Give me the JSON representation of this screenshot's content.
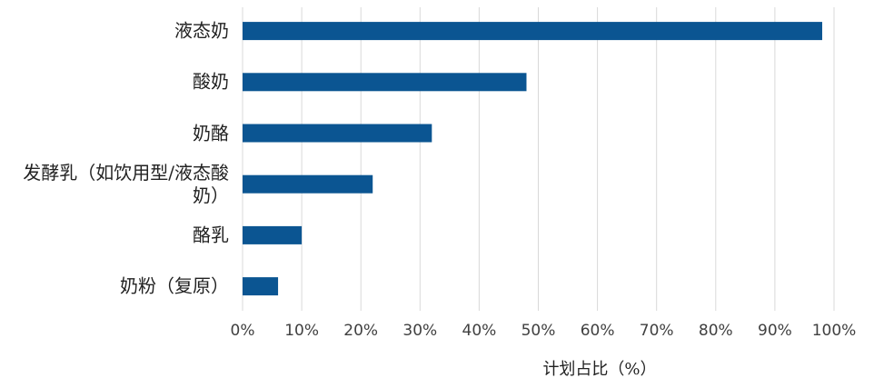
{
  "chart_data": {
    "type": "bar",
    "orientation": "horizontal",
    "categories": [
      "液态奶",
      "酸奶",
      "奶酪",
      "发酵乳（如饮用型/液态酸奶）",
      "酪乳",
      "奶粉（复原）"
    ],
    "values": [
      98,
      48,
      32,
      22,
      10,
      6
    ],
    "color": "#0b5592",
    "xlabel": "计划占比（%）",
    "xlim": [
      0,
      100
    ],
    "xticks": [
      {
        "value": 0,
        "label": "0%"
      },
      {
        "value": 10,
        "label": "10%"
      },
      {
        "value": 20,
        "label": "20%"
      },
      {
        "value": 30,
        "label": "30%"
      },
      {
        "value": 40,
        "label": "40%"
      },
      {
        "value": 50,
        "label": "50%"
      },
      {
        "value": 60,
        "label": "60%"
      },
      {
        "value": 70,
        "label": "70%"
      },
      {
        "value": 80,
        "label": "80%"
      },
      {
        "value": 90,
        "label": "90%"
      },
      {
        "value": 100,
        "label": "100%"
      }
    ],
    "grid": true
  }
}
